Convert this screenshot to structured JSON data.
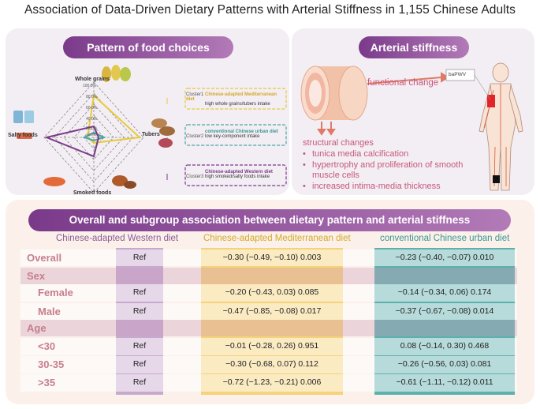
{
  "title": "Association of Data-Driven Dietary Patterns with Arterial Stiffness in 1,155 Chinese Adults",
  "food_panel": {
    "heading": "Pattern of food choices",
    "axes": [
      "Whole grains",
      "Tubers",
      "Smoked foods",
      "Salty foods"
    ],
    "ticks": [
      "100.0%",
      "80.0%",
      "60.0%",
      "40.0%",
      "20.0%",
      "0.0%"
    ],
    "clusters": [
      {
        "label": "Cluster1",
        "name": "Chinese-adapted Mediterranean diet",
        "desc": "high whole grains/tubers intake",
        "color": "#e8c93a"
      },
      {
        "label": "Cluster2",
        "name": "conventional Chinese urban diet",
        "desc": "low key-component intake",
        "color": "#4aa6a3"
      },
      {
        "label": "Cluster3",
        "name": "Chinese-adapted Western diet",
        "desc": "high smoked/salty foods intake",
        "color": "#7a3a8a"
      }
    ]
  },
  "art_panel": {
    "heading": "Arterial stiffness",
    "functional": "functional change",
    "bapwv": "baPWV",
    "structural": "structural changes",
    "items": [
      "tunica media calcification",
      "hypertrophy and proliferation of smooth muscle cells",
      "increased intima-media thickness"
    ]
  },
  "assoc_panel": {
    "heading": "Overall  and subgroup association between dietary pattern and arterial stiffness",
    "columns": [
      "Chinese-adapted Western diet",
      "Chinese-adapted Mediterranean diet",
      "conventional Chinese urban diet"
    ],
    "rows": [
      {
        "label": "Overall",
        "ref": "Ref",
        "med": "−0.30 (−0.49, −0.10) 0.003",
        "urban": "−0.23 (−0.40, −0.07) 0.010"
      },
      {
        "label": "Sex",
        "ref": "",
        "med": "",
        "urban": ""
      },
      {
        "label": "Female",
        "ref": "Ref",
        "med": "−0.20 (−0.43, 0.03) 0.085",
        "urban": "−0.14 (−0.34, 0.06) 0.174"
      },
      {
        "label": "Male",
        "ref": "Ref",
        "med": "−0.47 (−0.85, −0.08) 0.017",
        "urban": "−0.37 (−0.67, −0.08) 0.014"
      },
      {
        "label": "Age",
        "ref": "",
        "med": "",
        "urban": ""
      },
      {
        "label": "<30",
        "ref": "Ref",
        "med": "−0.01 (−0.28, 0.26) 0.951",
        "urban": "0.08 (−0.14, 0.30) 0.468"
      },
      {
        "label": "30-35",
        "ref": "Ref",
        "med": "−0.30 (−0.68, 0.07) 0.112",
        "urban": "−0.26 (−0.56, 0.03) 0.081"
      },
      {
        "label": ">35",
        "ref": "Ref",
        "med": "−0.72 (−1.23, −0.21) 0.006",
        "urban": "−0.61 (−1.11, −0.12) 0.011"
      }
    ]
  }
}
